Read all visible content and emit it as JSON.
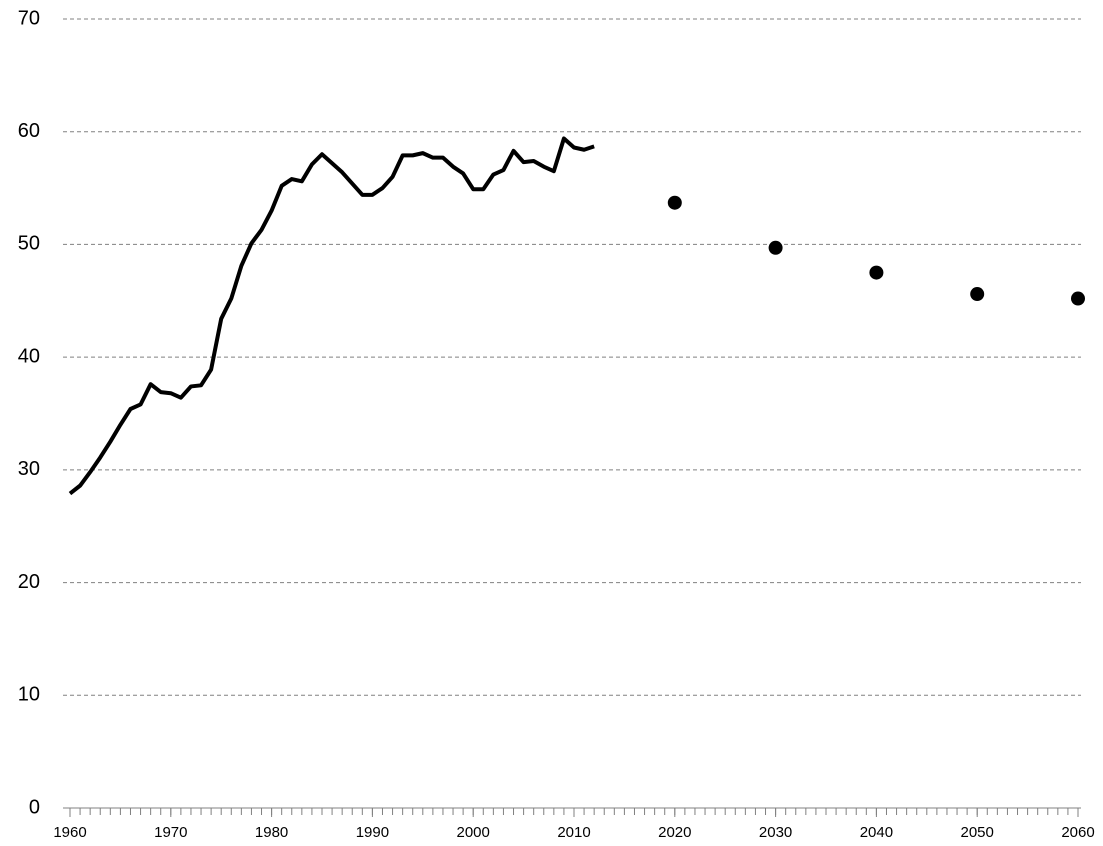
{
  "chart_data": {
    "type": "line",
    "series": [
      {
        "type": "line",
        "color": "#000000",
        "x": [
          1960,
          1961,
          1962,
          1963,
          1964,
          1965,
          1966,
          1967,
          1968,
          1969,
          1970,
          1971,
          1972,
          1973,
          1974,
          1975,
          1976,
          1977,
          1978,
          1979,
          1980,
          1981,
          1982,
          1983,
          1984,
          1985,
          1986,
          1987,
          1988,
          1989,
          1990,
          1991,
          1992,
          1993,
          1994,
          1995,
          1996,
          1997,
          1998,
          1999,
          2000,
          2001,
          2002,
          2003,
          2004,
          2005,
          2006,
          2007,
          2008,
          2009,
          2010,
          2011,
          2012
        ],
        "values": [
          27.9,
          28.6,
          29.8,
          31.1,
          32.5,
          34.0,
          35.4,
          35.8,
          37.6,
          36.9,
          36.8,
          36.4,
          37.4,
          37.5,
          38.9,
          43.4,
          45.2,
          48.1,
          50.1,
          51.3,
          53.0,
          55.2,
          55.8,
          55.6,
          57.1,
          58.0,
          57.2,
          56.4,
          55.4,
          54.4,
          54.4,
          55.0,
          56.0,
          57.9,
          57.9,
          58.1,
          57.7,
          57.7,
          56.9,
          56.3,
          54.9,
          54.9,
          56.2,
          56.6,
          58.3,
          57.3,
          57.4,
          56.9,
          56.5,
          59.4,
          58.6,
          58.4,
          58.7
        ]
      },
      {
        "type": "scatter",
        "color": "#000000",
        "x": [
          2020,
          2030,
          2040,
          2050,
          2060
        ],
        "values": [
          53.7,
          49.7,
          47.5,
          45.6,
          45.2
        ]
      }
    ],
    "xlim": [
      1960,
      2060
    ],
    "xticks": [
      1960,
      1970,
      1980,
      1990,
      2000,
      2010,
      2020,
      2030,
      2040,
      2050,
      2060
    ],
    "xminorticks": [
      1960,
      1961,
      1962,
      1963,
      1964,
      1965,
      1966,
      1967,
      1968,
      1969,
      1970,
      1971,
      1972,
      1973,
      1974,
      1975,
      1976,
      1977,
      1978,
      1979,
      1980,
      1981,
      1982,
      1983,
      1984,
      1985,
      1986,
      1987,
      1988,
      1989,
      1990,
      1991,
      1992,
      1993,
      1994,
      1995,
      1996,
      1997,
      1998,
      1999,
      2000,
      2001,
      2002,
      2003,
      2004,
      2005,
      2006,
      2007,
      2008,
      2009,
      2010,
      2011,
      2012,
      2013,
      2014,
      2015,
      2016,
      2017,
      2018,
      2019,
      2020,
      2021,
      2022,
      2023,
      2024,
      2025,
      2026,
      2027,
      2028,
      2029,
      2030,
      2031,
      2032,
      2033,
      2034,
      2035,
      2036,
      2037,
      2038,
      2039,
      2040,
      2041,
      2042,
      2043,
      2044,
      2045,
      2046,
      2047,
      2048,
      2049,
      2050,
      2051,
      2052,
      2053,
      2054,
      2055,
      2056,
      2057,
      2058,
      2059,
      2060
    ],
    "ylim": [
      0,
      70
    ],
    "yticks": [
      0,
      10,
      20,
      30,
      40,
      50,
      60,
      70
    ],
    "grid": true
  }
}
